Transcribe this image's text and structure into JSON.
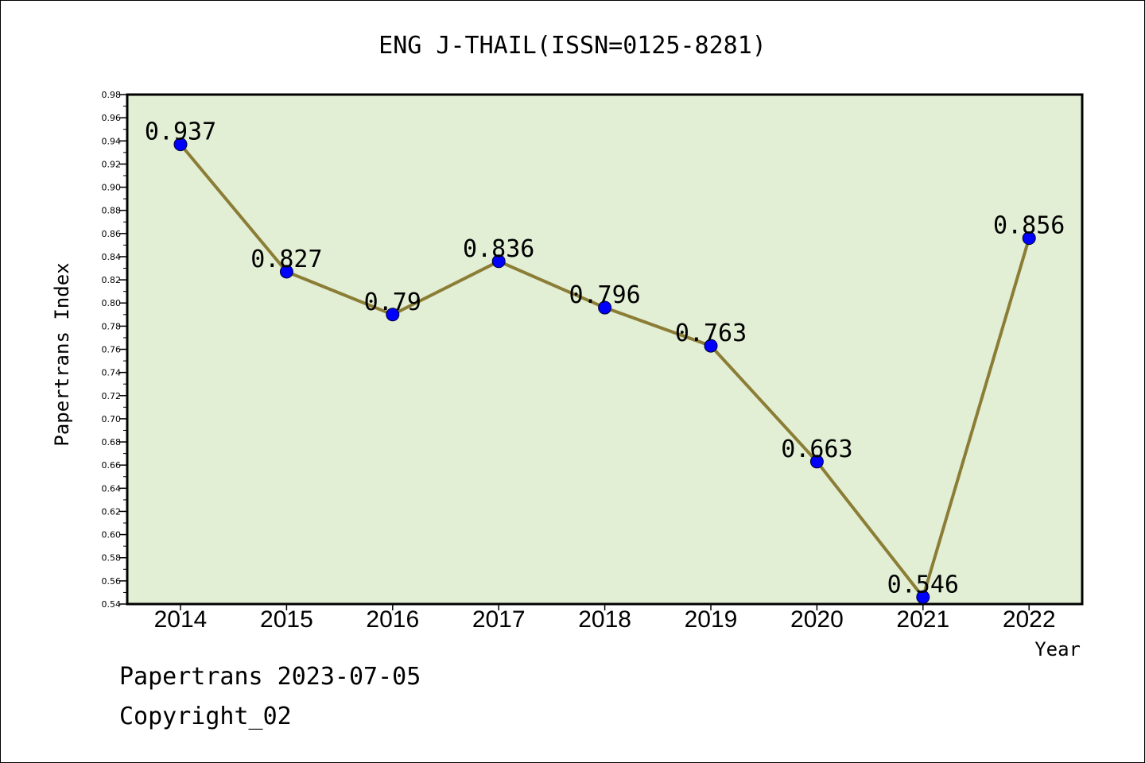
{
  "chart_data": {
    "type": "line",
    "title": "ENG J-THAIL(ISSN=0125-8281)",
    "xlabel": "Year",
    "ylabel": "Papertrans Index",
    "categories": [
      "2014",
      "2015",
      "2016",
      "2017",
      "2018",
      "2019",
      "2020",
      "2021",
      "2022"
    ],
    "series": [
      {
        "values": [
          0.937,
          0.827,
          0.79,
          0.836,
          0.796,
          0.763,
          0.663,
          0.546,
          0.856
        ],
        "labels": [
          "0.937",
          "0.827",
          "0.79",
          "0.836",
          "0.796",
          "0.763",
          "0.663",
          "0.546",
          "0.856"
        ]
      }
    ],
    "ylim": [
      0.54,
      0.98
    ],
    "yticks": [
      "0.54",
      "0.56",
      "0.58",
      "0.60",
      "0.62",
      "0.64",
      "0.66",
      "0.68",
      "0.70",
      "0.72",
      "0.74",
      "0.76",
      "0.78",
      "0.80",
      "0.82",
      "0.84",
      "0.86",
      "0.88",
      "0.90",
      "0.92",
      "0.94",
      "0.96",
      "0.98"
    ],
    "grid": false,
    "colors": {
      "plot_background": "#e2efd5",
      "line": "#8b7d35",
      "marker": "#0000ff"
    }
  },
  "footer": {
    "date_text": "Papertrans 2023-07-05",
    "copyright_text": "Copyright_02"
  }
}
